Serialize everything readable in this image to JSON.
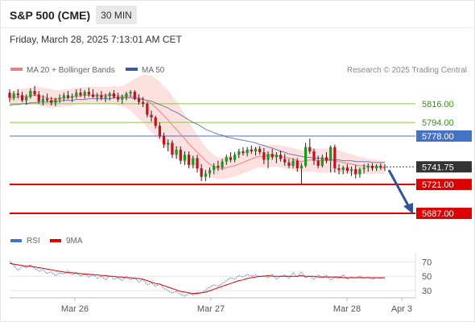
{
  "header": {
    "instrument": "S&P 500 (CME)",
    "timeframe": "30 MIN",
    "timestamp": "Friday, March 28, 2025 7:13:01 AM CET"
  },
  "legend": {
    "ma20_label": "MA 20 + Bollinger Bands",
    "ma50_label": "MA 50",
    "ma20_color": "#f08080",
    "ma50_color": "#3b5b9a",
    "rsi_label": "RSI",
    "ma9_label": "9MA",
    "rsi_color": "#4472c4",
    "ma9_color": "#dd0000"
  },
  "credit": "Research © 2025 Trading Central",
  "colors": {
    "bull": "#1a9a1a",
    "bear": "#c0111c",
    "bollinger_band": "#fde0e0",
    "current_price": "#333333",
    "resistance_line": "#8dc63f",
    "pivot_line": "#4472c4",
    "support_line": "#dd0000",
    "arrow": "#2f5597"
  },
  "chart_data": [
    {
      "type": "candlestick",
      "title": "S&P 500 (CME) 30 MIN",
      "ylim": [
        5670,
        5850
      ],
      "x_ticks": [
        "Mar 26",
        "Mar 27",
        "Mar 28",
        "Apr 3"
      ],
      "candles": [
        [
          5829,
          5833,
          5818,
          5823
        ],
        [
          5823,
          5831,
          5820,
          5828
        ],
        [
          5828,
          5833,
          5822,
          5826
        ],
        [
          5826,
          5830,
          5818,
          5820
        ],
        [
          5820,
          5827,
          5815,
          5824
        ],
        [
          5824,
          5834,
          5822,
          5831
        ],
        [
          5831,
          5837,
          5825,
          5827
        ],
        [
          5827,
          5831,
          5816,
          5819
        ],
        [
          5819,
          5826,
          5814,
          5822
        ],
        [
          5822,
          5828,
          5818,
          5820
        ],
        [
          5820,
          5824,
          5814,
          5817
        ],
        [
          5817,
          5823,
          5813,
          5821
        ],
        [
          5821,
          5827,
          5817,
          5823
        ],
        [
          5823,
          5829,
          5819,
          5826
        ],
        [
          5826,
          5831,
          5821,
          5823
        ],
        [
          5823,
          5828,
          5818,
          5825
        ],
        [
          5825,
          5833,
          5822,
          5829
        ],
        [
          5829,
          5834,
          5824,
          5826
        ],
        [
          5826,
          5832,
          5822,
          5830
        ],
        [
          5830,
          5835,
          5824,
          5827
        ],
        [
          5827,
          5833,
          5823,
          5824
        ],
        [
          5824,
          5829,
          5819,
          5826
        ],
        [
          5826,
          5831,
          5820,
          5823
        ],
        [
          5823,
          5828,
          5818,
          5825
        ],
        [
          5825,
          5830,
          5820,
          5828
        ],
        [
          5828,
          5832,
          5822,
          5824
        ],
        [
          5824,
          5829,
          5818,
          5821
        ],
        [
          5821,
          5827,
          5816,
          5824
        ],
        [
          5824,
          5830,
          5820,
          5828
        ],
        [
          5828,
          5832,
          5824,
          5830
        ],
        [
          5830,
          5832,
          5820,
          5822
        ],
        [
          5822,
          5827,
          5815,
          5818
        ],
        [
          5818,
          5824,
          5812,
          5816
        ],
        [
          5816,
          5818,
          5800,
          5803
        ],
        [
          5803,
          5808,
          5795,
          5800
        ],
        [
          5800,
          5802,
          5787,
          5790
        ],
        [
          5790,
          5794,
          5775,
          5778
        ],
        [
          5778,
          5782,
          5764,
          5768
        ],
        [
          5768,
          5774,
          5760,
          5770
        ],
        [
          5770,
          5773,
          5752,
          5756
        ],
        [
          5756,
          5766,
          5751,
          5762
        ],
        [
          5762,
          5766,
          5745,
          5749
        ],
        [
          5749,
          5760,
          5744,
          5756
        ],
        [
          5756,
          5760,
          5740,
          5744
        ],
        [
          5744,
          5755,
          5740,
          5752
        ],
        [
          5752,
          5756,
          5735,
          5740
        ],
        [
          5740,
          5745,
          5725,
          5730
        ],
        [
          5730,
          5738,
          5725,
          5734
        ],
        [
          5734,
          5741,
          5729,
          5738
        ],
        [
          5738,
          5746,
          5733,
          5743
        ],
        [
          5743,
          5749,
          5737,
          5741
        ],
        [
          5741,
          5751,
          5738,
          5748
        ],
        [
          5748,
          5756,
          5744,
          5753
        ],
        [
          5753,
          5759,
          5747,
          5750
        ],
        [
          5750,
          5759,
          5747,
          5756
        ],
        [
          5756,
          5763,
          5752,
          5760
        ],
        [
          5760,
          5765,
          5755,
          5758
        ],
        [
          5758,
          5765,
          5754,
          5762
        ],
        [
          5762,
          5767,
          5757,
          5760
        ],
        [
          5760,
          5765,
          5755,
          5763
        ],
        [
          5763,
          5766,
          5756,
          5759
        ],
        [
          5759,
          5764,
          5745,
          5750
        ],
        [
          5750,
          5760,
          5740,
          5757
        ],
        [
          5757,
          5763,
          5750,
          5753
        ],
        [
          5753,
          5759,
          5746,
          5756
        ],
        [
          5756,
          5761,
          5748,
          5751
        ],
        [
          5751,
          5757,
          5743,
          5747
        ],
        [
          5747,
          5751,
          5740,
          5743
        ],
        [
          5743,
          5752,
          5740,
          5749
        ],
        [
          5749,
          5752,
          5736,
          5740
        ],
        [
          5740,
          5746,
          5722,
          5743
        ],
        [
          5743,
          5770,
          5741,
          5765
        ],
        [
          5765,
          5775,
          5757,
          5760
        ],
        [
          5760,
          5763,
          5744,
          5749
        ],
        [
          5749,
          5755,
          5740,
          5743
        ],
        [
          5743,
          5756,
          5741,
          5753
        ],
        [
          5753,
          5759,
          5746,
          5749
        ],
        [
          5749,
          5767,
          5735,
          5765
        ],
        [
          5765,
          5768,
          5735,
          5740
        ],
        [
          5740,
          5745,
          5733,
          5738
        ],
        [
          5738,
          5743,
          5733,
          5741
        ],
        [
          5741,
          5745,
          5734,
          5737
        ],
        [
          5737,
          5742,
          5731,
          5739
        ],
        [
          5739,
          5744,
          5728,
          5733
        ],
        [
          5733,
          5741,
          5729,
          5739
        ],
        [
          5739,
          5745,
          5734,
          5741
        ],
        [
          5741,
          5746,
          5736,
          5743
        ],
        [
          5743,
          5746,
          5737,
          5740
        ],
        [
          5740,
          5745,
          5737,
          5743
        ],
        [
          5743,
          5746,
          5738,
          5741
        ],
        [
          5741,
          5745,
          5737,
          5742
        ]
      ],
      "ma20": [
        5822,
        5823,
        5824,
        5825,
        5824,
        5825,
        5826,
        5825,
        5824,
        5823,
        5822,
        5822,
        5822,
        5823,
        5823,
        5824,
        5825,
        5825,
        5826,
        5826,
        5826,
        5826,
        5826,
        5826,
        5826,
        5826,
        5825,
        5825,
        5825,
        5825,
        5824,
        5823,
        5822,
        5819,
        5816,
        5812,
        5807,
        5802,
        5797,
        5791,
        5786,
        5780,
        5775,
        5769,
        5764,
        5759,
        5754,
        5749,
        5745,
        5742,
        5740,
        5740,
        5741,
        5742,
        5743,
        5745,
        5747,
        5749,
        5751,
        5753,
        5754,
        5754,
        5755,
        5755,
        5755,
        5754,
        5753,
        5752,
        5751,
        5749,
        5748,
        5749,
        5750,
        5750,
        5749,
        5749,
        5749,
        5750,
        5749,
        5748,
        5747,
        5746,
        5745,
        5744,
        5743,
        5743,
        5742,
        5742,
        5742,
        5741,
        5741
      ],
      "ma50": [
        5814,
        5815,
        5815,
        5816,
        5816,
        5817,
        5817,
        5818,
        5818,
        5818,
        5819,
        5819,
        5819,
        5820,
        5820,
        5820,
        5821,
        5821,
        5821,
        5822,
        5822,
        5822,
        5822,
        5822,
        5822,
        5823,
        5823,
        5823,
        5823,
        5823,
        5822,
        5822,
        5821,
        5820,
        5819,
        5817,
        5815,
        5813,
        5811,
        5808,
        5806,
        5803,
        5800,
        5797,
        5794,
        5792,
        5789,
        5786,
        5784,
        5782,
        5780,
        5779,
        5777,
        5776,
        5775,
        5774,
        5773,
        5772,
        5771,
        5770,
        5768,
        5767,
        5765,
        5764,
        5762,
        5760,
        5759,
        5757,
        5756,
        5755,
        5754,
        5753,
        5753,
        5752,
        5752,
        5751,
        5751,
        5750,
        5750,
        5750,
        5749,
        5749,
        5749,
        5748,
        5748,
        5748,
        5748,
        5747,
        5747,
        5747,
        5747
      ],
      "bollinger_width": [
        8,
        8,
        9,
        9,
        10,
        10,
        10,
        11,
        11,
        11,
        11,
        10,
        10,
        10,
        10,
        10,
        10,
        10,
        10,
        10,
        10,
        10,
        10,
        10,
        10,
        11,
        11,
        12,
        14,
        17,
        21,
        25,
        28,
        31,
        33,
        34,
        35,
        35,
        35,
        34,
        33,
        31,
        29,
        26,
        23,
        20,
        18,
        16,
        15,
        14,
        13,
        13,
        13,
        13,
        13,
        13,
        13,
        13,
        13,
        13,
        13,
        13,
        13,
        13,
        13,
        13,
        13,
        13,
        13,
        13,
        13,
        13,
        14,
        14,
        14,
        14,
        14,
        14,
        14,
        13,
        13,
        12,
        12,
        11,
        10,
        10,
        9,
        9,
        8,
        8,
        8
      ],
      "levels": [
        {
          "label": "5816.00",
          "value": 5816,
          "kind": "resistance"
        },
        {
          "label": "5794.00",
          "value": 5794,
          "kind": "resistance"
        },
        {
          "label": "5778.00",
          "value": 5778,
          "kind": "pivot"
        },
        {
          "label": "5741.75",
          "value": 5741.75,
          "kind": "current"
        },
        {
          "label": "5721.00",
          "value": 5721,
          "kind": "support"
        },
        {
          "label": "5687.00",
          "value": 5687,
          "kind": "support"
        }
      ],
      "forecast_arrow": {
        "from": 5738,
        "to": 5687
      }
    },
    {
      "type": "line",
      "ylim": [
        20,
        85
      ],
      "y_ticks": [
        70,
        50,
        30
      ],
      "series": [
        {
          "name": "RSI",
          "values": [
            71,
            65,
            58,
            64,
            62,
            66,
            61,
            57,
            59,
            54,
            56,
            51,
            55,
            53,
            58,
            52,
            56,
            50,
            54,
            49,
            53,
            47,
            50,
            45,
            51,
            46,
            48,
            44,
            50,
            45,
            48,
            42,
            46,
            38,
            41,
            36,
            40,
            33,
            30,
            27,
            29,
            25,
            22,
            26,
            24,
            28,
            27,
            31,
            35,
            38,
            36,
            40,
            44,
            48,
            46,
            51,
            49,
            53,
            50,
            52,
            49,
            51,
            48,
            53,
            46,
            50,
            52,
            47,
            55,
            49,
            56,
            48,
            50,
            46,
            52,
            48,
            51,
            45,
            49,
            47,
            52,
            46,
            49,
            48,
            50,
            47,
            49,
            46,
            48,
            47,
            48
          ]
        },
        {
          "name": "9MA",
          "values": [
            68,
            67,
            66,
            65,
            64,
            64,
            63,
            62,
            61,
            60,
            59,
            58,
            57,
            56,
            55,
            55,
            54,
            54,
            53,
            53,
            52,
            52,
            51,
            51,
            50,
            50,
            49,
            49,
            48,
            48,
            47,
            47,
            46,
            44,
            42,
            40,
            39,
            37,
            35,
            33,
            31,
            29,
            28,
            27,
            26,
            26,
            27,
            28,
            30,
            32,
            34,
            36,
            38,
            40,
            42,
            44,
            45,
            47,
            48,
            49,
            50,
            50,
            51,
            50,
            50,
            50,
            50,
            50,
            50,
            50,
            51,
            50,
            50,
            50,
            49,
            49,
            49,
            49,
            49,
            49,
            48,
            48,
            48,
            48,
            48,
            48,
            48,
            48,
            48,
            48,
            48
          ]
        }
      ]
    }
  ]
}
